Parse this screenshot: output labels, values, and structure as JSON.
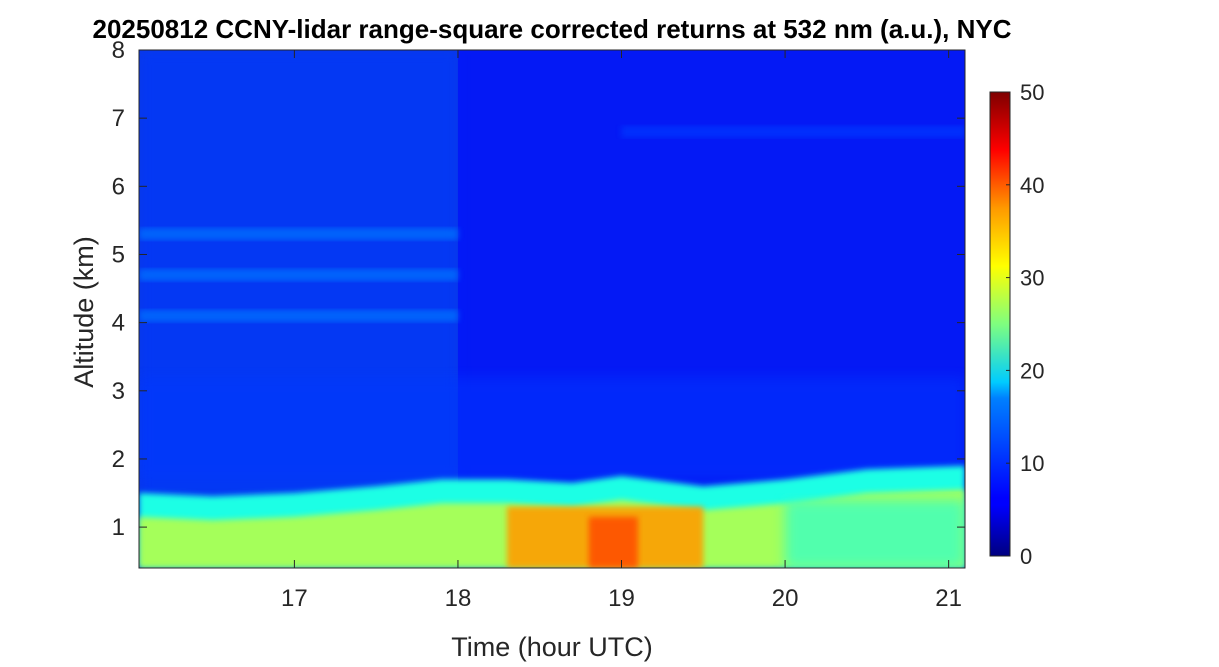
{
  "chart_data": {
    "type": "heatmap",
    "title": "20250812 CCNY-lidar range-square corrected returns at 532 nm (a.u.), NYC",
    "xlabel": "Time (hour UTC)",
    "ylabel": "Altitude (km)",
    "xlim": [
      16.05,
      21.1
    ],
    "ylim": [
      0.4,
      8
    ],
    "x_ticks": [
      17,
      18,
      19,
      20,
      21
    ],
    "y_ticks": [
      1,
      2,
      3,
      4,
      5,
      6,
      7,
      8
    ],
    "colorbar": {
      "colormap": "jet",
      "range": [
        0,
        50
      ],
      "ticks": [
        0,
        10,
        20,
        30,
        40,
        50
      ]
    },
    "boundary_layer_top_km": {
      "x": [
        16.05,
        16.5,
        17.0,
        17.5,
        17.9,
        18.3,
        18.7,
        19.0,
        19.5,
        20.0,
        20.5,
        21.1
      ],
      "y": [
        1.5,
        1.45,
        1.5,
        1.6,
        1.7,
        1.7,
        1.65,
        1.75,
        1.6,
        1.7,
        1.85,
        1.9
      ]
    },
    "aerosol_layers_km": [
      {
        "x_range": [
          16.05,
          18.0
        ],
        "altitude": 5.3,
        "value": 12
      },
      {
        "x_range": [
          16.05,
          18.0
        ],
        "altitude": 4.7,
        "value": 12
      },
      {
        "x_range": [
          16.05,
          18.0
        ],
        "altitude": 4.1,
        "value": 12
      },
      {
        "x_range": [
          19.0,
          21.1
        ],
        "altitude": 6.8,
        "value": 9
      }
    ],
    "max_region": {
      "x_range": [
        18.3,
        19.5
      ],
      "altitude_range": [
        0.4,
        1.3
      ],
      "value": 40
    }
  }
}
